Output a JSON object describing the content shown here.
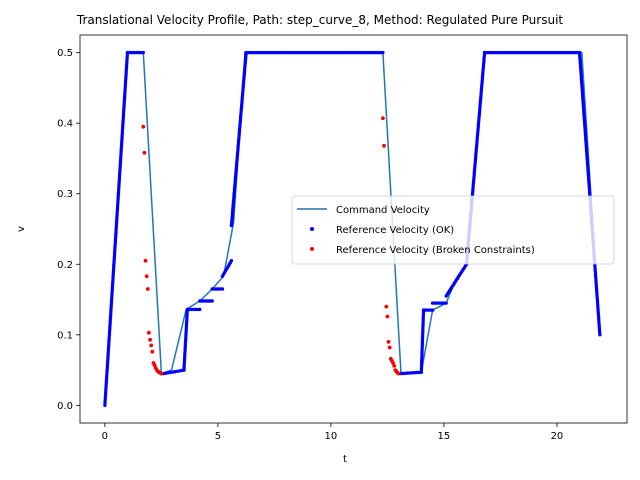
{
  "chart_data": {
    "type": "line",
    "title": "Translational Velocity Profile, Path: step_curve_8, Method: Regulated Pure Pursuit",
    "xlabel": "t",
    "ylabel": "v",
    "xlim": [
      -1.1,
      23.1
    ],
    "ylim": [
      -0.025,
      0.525
    ],
    "xticks": [
      0,
      5,
      10,
      15,
      20
    ],
    "yticks": [
      0.0,
      0.1,
      0.2,
      0.3,
      0.4,
      0.5
    ],
    "xtick_labels": [
      "0",
      "5",
      "10",
      "15",
      "20"
    ],
    "ytick_labels": [
      "0.0",
      "0.1",
      "0.2",
      "0.3",
      "0.4",
      "0.5"
    ],
    "grid": false,
    "legend_position": "center-right",
    "colors": {
      "command": "#1f77b4",
      "ok": "#0000ff",
      "broken": "#ff0000"
    },
    "series": [
      {
        "name": "Command Velocity",
        "kind": "line",
        "x": [
          0,
          1.0,
          1.7,
          2.5,
          2.95,
          3.6,
          4.2,
          4.75,
          5.25,
          5.7,
          6.2,
          12.3,
          13.1,
          14.0,
          14.5,
          15.1,
          15.55,
          16.0,
          16.8,
          21.1,
          21.9
        ],
        "y": [
          0,
          0.5,
          0.5,
          0.045,
          0.05,
          0.136,
          0.148,
          0.165,
          0.183,
          0.26,
          0.5,
          0.5,
          0.045,
          0.047,
          0.135,
          0.145,
          0.18,
          0.2,
          0.5,
          0.5,
          0.1
        ]
      },
      {
        "name": "Reference Velocity (OK)",
        "kind": "scatter",
        "segments": [
          [
            [
              0,
              0
            ],
            [
              1.0,
              0.5
            ]
          ],
          [
            [
              1.0,
              0.5
            ],
            [
              1.7,
              0.5
            ]
          ],
          [
            [
              2.6,
              0.045
            ],
            [
              3.5,
              0.05
            ]
          ],
          [
            [
              3.5,
              0.05
            ],
            [
              3.65,
              0.136
            ]
          ],
          [
            [
              3.65,
              0.136
            ],
            [
              4.2,
              0.136
            ]
          ],
          [
            [
              4.2,
              0.148
            ],
            [
              4.75,
              0.148
            ]
          ],
          [
            [
              4.75,
              0.165
            ],
            [
              5.2,
              0.165
            ]
          ],
          [
            [
              5.2,
              0.183
            ],
            [
              5.6,
              0.205
            ]
          ],
          [
            [
              5.6,
              0.255
            ],
            [
              6.25,
              0.5
            ]
          ],
          [
            [
              6.25,
              0.5
            ],
            [
              12.3,
              0.5
            ]
          ],
          [
            [
              13.1,
              0.045
            ],
            [
              14.0,
              0.047
            ]
          ],
          [
            [
              14.0,
              0.047
            ],
            [
              14.1,
              0.135
            ]
          ],
          [
            [
              14.1,
              0.135
            ],
            [
              14.5,
              0.135
            ]
          ],
          [
            [
              14.5,
              0.145
            ],
            [
              15.1,
              0.145
            ]
          ],
          [
            [
              15.1,
              0.155
            ],
            [
              15.6,
              0.18
            ]
          ],
          [
            [
              15.6,
              0.18
            ],
            [
              16.0,
              0.2
            ]
          ],
          [
            [
              16.0,
              0.2
            ],
            [
              16.8,
              0.5
            ]
          ],
          [
            [
              16.8,
              0.5
            ],
            [
              21.0,
              0.5
            ]
          ],
          [
            [
              21.0,
              0.5
            ],
            [
              21.9,
              0.1
            ]
          ]
        ]
      },
      {
        "name": "Reference Velocity (Broken Constraints)",
        "kind": "scatter",
        "x": [
          1.7,
          1.75,
          1.8,
          1.85,
          1.9,
          1.95,
          2.0,
          2.05,
          2.1,
          2.15,
          2.2,
          2.25,
          2.3,
          2.35,
          2.4,
          2.45,
          2.5,
          12.3,
          12.35,
          12.45,
          12.5,
          12.55,
          12.6,
          12.65,
          12.7,
          12.75,
          12.8,
          12.85,
          12.9,
          12.95,
          13.0
        ],
        "y": [
          0.395,
          0.358,
          0.205,
          0.183,
          0.165,
          0.103,
          0.093,
          0.085,
          0.076,
          0.06,
          0.057,
          0.053,
          0.05,
          0.048,
          0.047,
          0.046,
          0.045,
          0.407,
          0.368,
          0.14,
          0.126,
          0.09,
          0.082,
          0.066,
          0.063,
          0.06,
          0.056,
          0.05,
          0.048,
          0.046,
          0.045
        ]
      }
    ]
  }
}
